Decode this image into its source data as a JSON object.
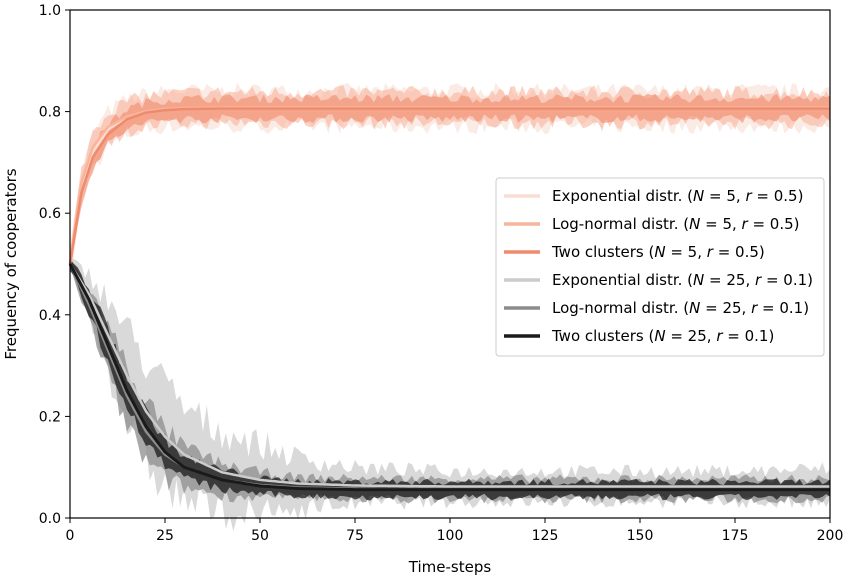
{
  "chart_data": {
    "type": "line",
    "title": "",
    "xlabel": "Time-steps",
    "ylabel": "Frequency of cooperators",
    "xlim": [
      0,
      200
    ],
    "ylim": [
      0,
      1.0
    ],
    "xticks": [
      "0",
      "25",
      "50",
      "75",
      "100",
      "125",
      "150",
      "175",
      "200"
    ],
    "yticks": [
      "0.0",
      "0.2",
      "0.4",
      "0.6",
      "0.8",
      "1.0"
    ],
    "grid": false,
    "legend_position": "center-right",
    "series": [
      {
        "name": "Exponential distr. (N = 5, r = 0.5)",
        "legend": {
          "pre": "Exponential distr. (",
          "v1": "N",
          "mid": " = 5, ",
          "v2": "r",
          "post": " = 0.5)"
        },
        "color": "#f8ddd3",
        "x": [
          0,
          3,
          6,
          10,
          15,
          20,
          25,
          30,
          40,
          60,
          80,
          100,
          125,
          150,
          175,
          200
        ],
        "values": [
          0.5,
          0.65,
          0.72,
          0.765,
          0.79,
          0.8,
          0.805,
          0.806,
          0.806,
          0.806,
          0.806,
          0.806,
          0.806,
          0.806,
          0.806,
          0.806
        ],
        "band": [
          0.03,
          0.03,
          0.035,
          0.035,
          0.035,
          0.035,
          0.035,
          0.035,
          0.035,
          0.035,
          0.035,
          0.035,
          0.035,
          0.035,
          0.035,
          0.035
        ]
      },
      {
        "name": "Log-normal distr. (N = 5, r = 0.5)",
        "legend": {
          "pre": "Log-normal distr. (",
          "v1": "N",
          "mid": " = 5, ",
          "v2": "r",
          "post": " = 0.5)"
        },
        "color": "#f9b49b",
        "x": [
          0,
          3,
          6,
          10,
          15,
          20,
          25,
          30,
          40,
          60,
          80,
          100,
          125,
          150,
          175,
          200
        ],
        "values": [
          0.5,
          0.66,
          0.73,
          0.77,
          0.79,
          0.8,
          0.805,
          0.807,
          0.808,
          0.808,
          0.808,
          0.808,
          0.808,
          0.808,
          0.808,
          0.808
        ],
        "band": [
          0.025,
          0.025,
          0.03,
          0.03,
          0.03,
          0.03,
          0.03,
          0.03,
          0.03,
          0.03,
          0.03,
          0.03,
          0.03,
          0.03,
          0.03,
          0.03
        ]
      },
      {
        "name": "Two clusters (N = 5, r = 0.5)",
        "legend": {
          "pre": "Two clusters (",
          "v1": "N",
          "mid": " = 5, ",
          "v2": "r",
          "post": " = 0.5)"
        },
        "color": "#f08a6c",
        "x": [
          0,
          3,
          6,
          10,
          15,
          20,
          25,
          30,
          40,
          60,
          80,
          100,
          125,
          150,
          175,
          200
        ],
        "values": [
          0.5,
          0.64,
          0.71,
          0.755,
          0.785,
          0.798,
          0.803,
          0.805,
          0.806,
          0.806,
          0.806,
          0.806,
          0.806,
          0.806,
          0.806,
          0.806
        ],
        "band": [
          0.02,
          0.02,
          0.02,
          0.02,
          0.02,
          0.02,
          0.02,
          0.02,
          0.02,
          0.02,
          0.02,
          0.02,
          0.02,
          0.02,
          0.02,
          0.02
        ]
      },
      {
        "name": "Exponential distr. (N = 25, r = 0.1)",
        "legend": {
          "pre": "Exponential distr. (",
          "v1": "N",
          "mid": " = 25, ",
          "v2": "r",
          "post": " = 0.1)"
        },
        "color": "#cccccc",
        "x": [
          0,
          5,
          10,
          15,
          20,
          25,
          30,
          40,
          50,
          60,
          75,
          100,
          125,
          150,
          175,
          200
        ],
        "values": [
          0.5,
          0.44,
          0.36,
          0.28,
          0.21,
          0.16,
          0.125,
          0.09,
          0.075,
          0.068,
          0.064,
          0.062,
          0.062,
          0.062,
          0.062,
          0.062
        ],
        "band": [
          0.01,
          0.04,
          0.07,
          0.09,
          0.1,
          0.1,
          0.09,
          0.08,
          0.07,
          0.05,
          0.035,
          0.03,
          0.03,
          0.03,
          0.03,
          0.035
        ]
      },
      {
        "name": "Log-normal distr. (N = 25, r = 0.1)",
        "legend": {
          "pre": "Log-normal distr. (",
          "v1": "N",
          "mid": " = 25, ",
          "v2": "r",
          "post": " = 0.1)"
        },
        "color": "#8c8c8c",
        "x": [
          0,
          5,
          10,
          15,
          20,
          25,
          30,
          40,
          50,
          60,
          75,
          100,
          125,
          150,
          175,
          200
        ],
        "values": [
          0.5,
          0.42,
          0.33,
          0.24,
          0.17,
          0.125,
          0.1,
          0.075,
          0.065,
          0.06,
          0.058,
          0.057,
          0.057,
          0.057,
          0.057,
          0.057
        ],
        "band": [
          0.01,
          0.03,
          0.05,
          0.06,
          0.06,
          0.05,
          0.04,
          0.03,
          0.025,
          0.02,
          0.02,
          0.02,
          0.02,
          0.02,
          0.02,
          0.02
        ]
      },
      {
        "name": "Two clusters (N = 25, r = 0.1)",
        "legend": {
          "pre": "Two clusters (",
          "v1": "N",
          "mid": " = 25, ",
          "v2": "r",
          "post": " = 0.1)"
        },
        "color": "#1a1a1a",
        "x": [
          0,
          5,
          10,
          15,
          20,
          25,
          30,
          40,
          50,
          60,
          75,
          100,
          125,
          150,
          175,
          200
        ],
        "values": [
          0.5,
          0.43,
          0.34,
          0.25,
          0.18,
          0.13,
          0.1,
          0.075,
          0.063,
          0.058,
          0.056,
          0.056,
          0.056,
          0.056,
          0.056,
          0.056
        ],
        "band": [
          0.01,
          0.025,
          0.03,
          0.03,
          0.03,
          0.025,
          0.02,
          0.02,
          0.015,
          0.015,
          0.015,
          0.015,
          0.015,
          0.015,
          0.015,
          0.015
        ]
      }
    ]
  }
}
